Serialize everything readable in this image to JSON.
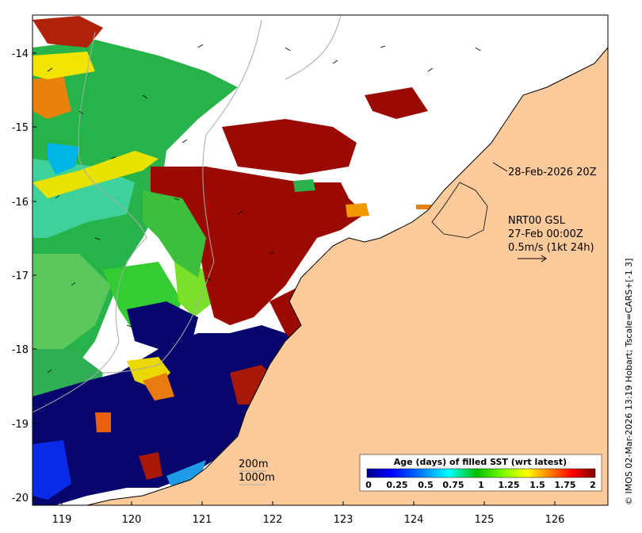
{
  "map": {
    "timestamp": "28-Feb-2026 20Z",
    "current_info": {
      "line1": "NRT00 GSL",
      "line2": "27-Feb 00:00Z",
      "line3": "0.5m/s (1kt 24h)"
    },
    "contours": [
      "200m",
      "1000m"
    ],
    "credit": "© IMOS 02-Mar-2026 13:19 Hobart; Tscale=CARS+[-1 3]",
    "colors": {
      "land": "#fdca9b",
      "no_data": "#ffffff",
      "coast": "#000000",
      "isobath": "#aaaaaa"
    }
  },
  "axes": {
    "x_ticks": [
      "119",
      "120",
      "121",
      "122",
      "123",
      "124",
      "125",
      "126"
    ],
    "y_ticks": [
      "-14",
      "-15",
      "-16",
      "-17",
      "-18",
      "-19",
      "-20"
    ]
  },
  "colorbar": {
    "title": "Age (days) of filled SST (wrt latest)",
    "tick_labels": [
      "0",
      "0.25",
      "0.5",
      "0.75",
      "1",
      "1.25",
      "1.5",
      "1.75",
      "2"
    ],
    "stops": [
      "#00008f",
      "#0000ff",
      "#0080ff",
      "#00ffff",
      "#00c000",
      "#80ff00",
      "#ffff00",
      "#ff8000",
      "#ff0000",
      "#800000"
    ]
  }
}
